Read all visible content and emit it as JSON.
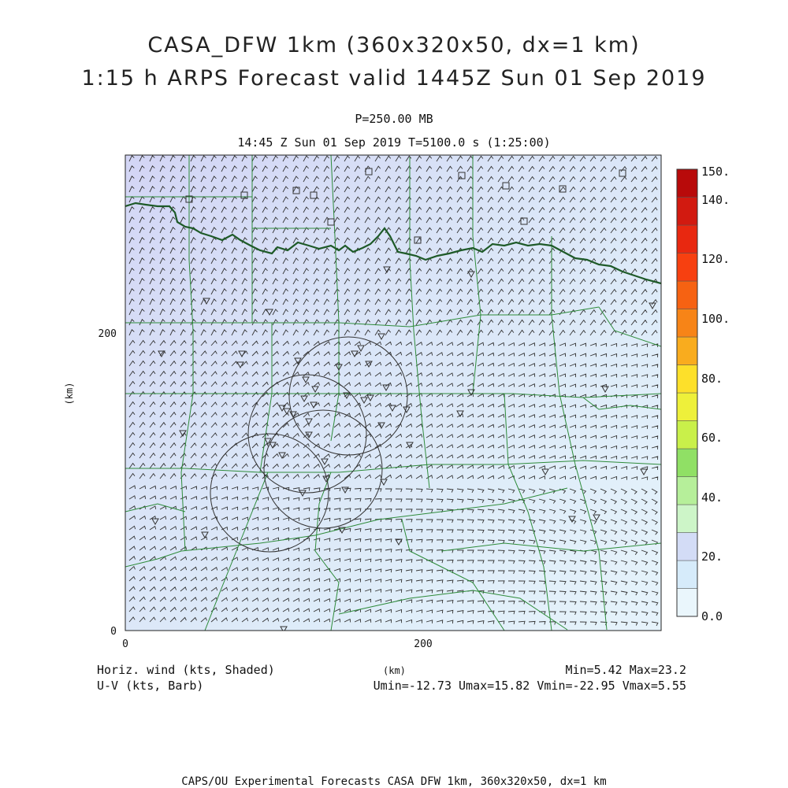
{
  "title": {
    "line1": "CASA_DFW 1km (360x320x50, dx=1 km)",
    "line2": "1:15 h ARPS Forecast valid 1445Z Sun 01 Sep 2019"
  },
  "level": "P=250.00 MB",
  "time_label": "14:45 Z Sun 01 Sep 2019   T=5100.0 s (1:25:00)",
  "axes": {
    "y_unit": "(km)",
    "x_unit": "(km)",
    "y_ticks": [
      "0",
      "200"
    ],
    "x_ticks": [
      "0",
      "200"
    ]
  },
  "colorbar": {
    "labels": [
      "0.0",
      "20.",
      "40.",
      "60.",
      "80.",
      "100.",
      "120.",
      "140.",
      "150."
    ],
    "colors": [
      "#eaf6fc",
      "#d6ebfa",
      "#d3dcf6",
      "#cdf5c8",
      "#b6ef9a",
      "#90e065",
      "#c9f04a",
      "#eef03a",
      "#fde02a",
      "#f9ac1e",
      "#f78417",
      "#f66212",
      "#f74010",
      "#e82810",
      "#d21a10",
      "#b80a0a"
    ]
  },
  "stats": {
    "left1": "Horiz. wind (kts, Shaded)",
    "left2": "U-V (kts, Barb)",
    "minmax": "Min=5.42 Max=23.2",
    "uvminmax": "Umin=-12.73 Umax=15.82 Vmin=-22.95 Vmax=5.55"
  },
  "footer": "CAPS/OU Experimental Forecasts  CASA DFW 1km, 360x320x50, dx=1 km"
}
